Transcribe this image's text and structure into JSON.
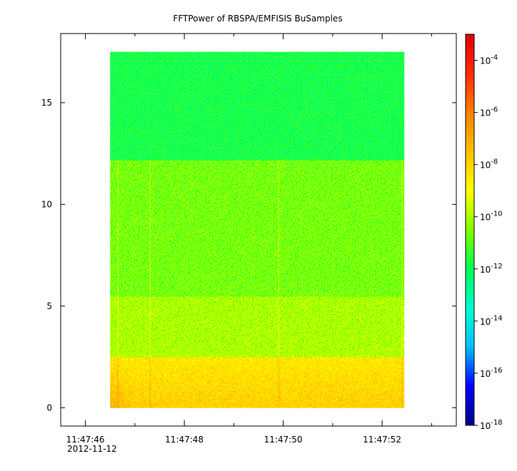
{
  "chart_data": {
    "type": "heatmap",
    "title": "FFTPower of RBSPA/EMFISIS  BuSamples",
    "xlabel": "",
    "ylabel": "",
    "x_ticks": [
      {
        "t": 46,
        "label": "11:47:46"
      },
      {
        "t": 48,
        "label": "11:47:48"
      },
      {
        "t": 50,
        "label": "11:47:50"
      },
      {
        "t": 52,
        "label": "11:47:52"
      }
    ],
    "x_minor_ticks": [
      45.5,
      47,
      49,
      51,
      53
    ],
    "x_date_label": "2012-11-12",
    "xlim_seconds": [
      45.5,
      53.5
    ],
    "data_span_seconds": [
      46.5,
      52.45
    ],
    "y_ticks": [
      0,
      5,
      10,
      15
    ],
    "ylim": [
      -0.9,
      18.4
    ],
    "data_span_y": [
      0,
      17.5
    ],
    "colorbar": {
      "scale": "log",
      "range": [
        1e-18,
        0.001
      ],
      "ticks": [
        {
          "base": "10",
          "exp": "-4",
          "value": 0.0001
        },
        {
          "base": "10",
          "exp": "-6",
          "value": 1e-06
        },
        {
          "base": "10",
          "exp": "-8",
          "value": 1e-08
        },
        {
          "base": "10",
          "exp": "-10",
          "value": 1e-10
        },
        {
          "base": "10",
          "exp": "-12",
          "value": 1e-12
        },
        {
          "base": "10",
          "exp": "-14",
          "value": 1e-14
        },
        {
          "base": "10",
          "exp": "-16",
          "value": 1e-16
        },
        {
          "base": "10",
          "exp": "-18",
          "value": 1e-18
        }
      ],
      "colors": [
        "#00008b",
        "#0000ff",
        "#00bfff",
        "#00ffd0",
        "#00ff55",
        "#7fff00",
        "#ffff00",
        "#ffc000",
        "#ff7f00",
        "#ff2a00",
        "#e00000"
      ]
    },
    "regions": [
      {
        "y_range": [
          12.2,
          17.5
        ],
        "log_power": -11.8
      },
      {
        "y_range": [
          5.5,
          12.2
        ],
        "log_power": -10.6
      },
      {
        "y_range": [
          2.5,
          5.5
        ],
        "log_power": -10.0
      },
      {
        "y_range": [
          0,
          2.5
        ],
        "log_power": -8.6
      }
    ]
  }
}
